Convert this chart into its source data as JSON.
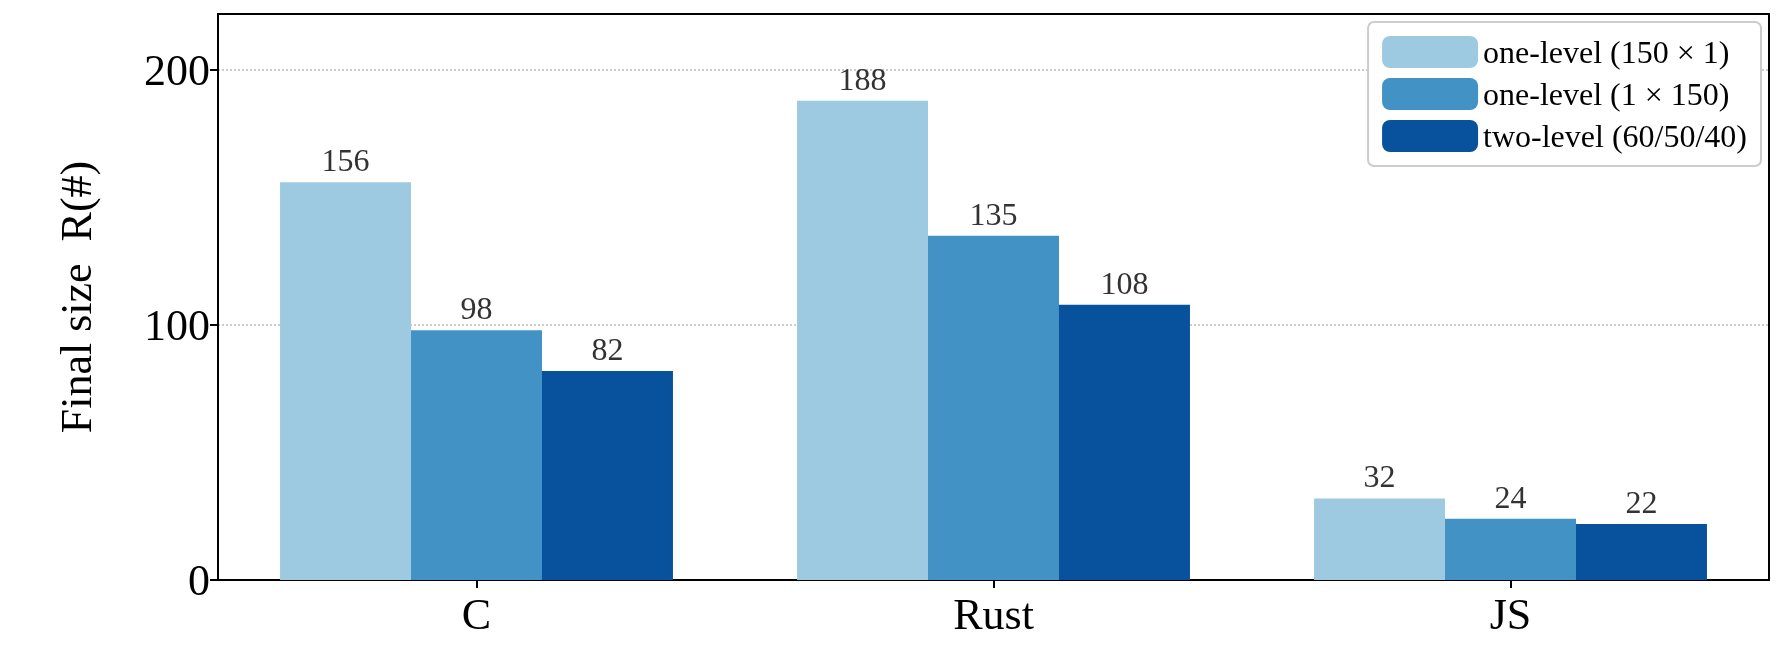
{
  "chart_data": {
    "type": "bar",
    "ylabel": "Final size  R(#)",
    "categories": [
      "C",
      "Rust",
      "JS"
    ],
    "series": [
      {
        "name": "one-level (150 × 1)",
        "color": "#9ecae1",
        "values": [
          156,
          188,
          32
        ]
      },
      {
        "name": "one-level (1 × 150)",
        "color": "#4292c6",
        "values": [
          98,
          135,
          24
        ]
      },
      {
        "name": "two-level (60/50/40)",
        "color": "#08519c",
        "values": [
          82,
          108,
          22
        ]
      }
    ],
    "ylim": [
      0,
      222
    ],
    "yticks": [
      0,
      100,
      200
    ],
    "grid": "y",
    "legend": "top right",
    "data_labels": true
  }
}
